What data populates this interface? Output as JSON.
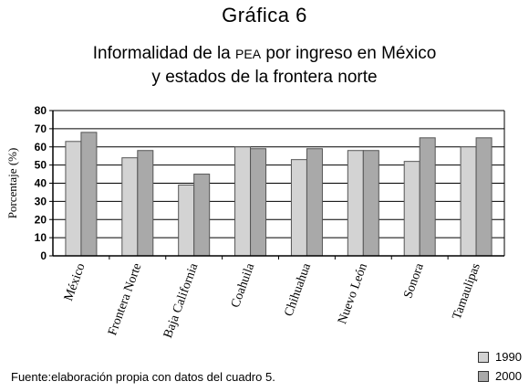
{
  "figure_label": "Gráfica 6",
  "title_part1": "Informalidad de la ",
  "title_abbrev": "PEA",
  "title_part2": " por ingreso en México",
  "title_line2": "y estados de la frontera norte",
  "source": "Fuente:elaboración propia con datos del cuadro 5.",
  "chart_data": {
    "type": "bar",
    "ylabel": "Porcentaje (%)",
    "ylim": [
      0,
      80
    ],
    "yticks": [
      0,
      10,
      20,
      30,
      40,
      50,
      60,
      70,
      80
    ],
    "grid": true,
    "legend_position": "bottom-right",
    "categories": [
      "México",
      "Frontera Norte",
      "Baja California",
      "Coahuila",
      "Chihuahua",
      "Nuevo León",
      "Sonora",
      "Tamaulipas"
    ],
    "series": [
      {
        "name": "1990",
        "color": "#d3d3d3",
        "values": [
          63,
          54,
          39,
          60,
          53,
          58,
          52,
          60
        ]
      },
      {
        "name": "2000",
        "color": "#a9a9a9",
        "values": [
          68,
          58,
          45,
          59,
          59,
          58,
          65,
          65
        ]
      }
    ]
  }
}
